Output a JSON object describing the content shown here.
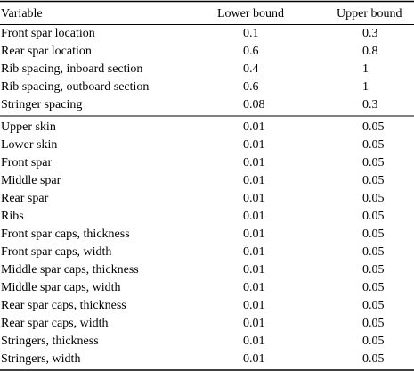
{
  "table": {
    "header": [
      "Variable",
      "Lower bound",
      "Upper bound"
    ],
    "groups": [
      [
        [
          "Front spar location",
          "0.1",
          "0.3"
        ],
        [
          "Rear spar location",
          "0.6",
          "0.8"
        ],
        [
          "Rib spacing, inboard section",
          "0.4",
          "1"
        ],
        [
          "Rib spacing, outboard section",
          "0.6",
          "1"
        ],
        [
          "Stringer spacing",
          "0.08",
          "0.3"
        ]
      ],
      [
        [
          "Upper skin",
          "0.01",
          "0.05"
        ],
        [
          "Lower skin",
          "0.01",
          "0.05"
        ],
        [
          "Front spar",
          "0.01",
          "0.05"
        ],
        [
          "Middle spar",
          "0.01",
          "0.05"
        ],
        [
          "Rear spar",
          "0.01",
          "0.05"
        ],
        [
          "Ribs",
          "0.01",
          "0.05"
        ],
        [
          "Front spar caps, thickness",
          "0.01",
          "0.05"
        ],
        [
          "Front spar caps, width",
          "0.01",
          "0.05"
        ],
        [
          "Middle spar caps, thickness",
          "0.01",
          "0.05"
        ],
        [
          "Middle spar caps, width",
          "0.01",
          "0.05"
        ],
        [
          "Rear spar caps, thickness",
          "0.01",
          "0.05"
        ],
        [
          "Rear spar caps, width",
          "0.01",
          "0.05"
        ],
        [
          "Stringers, thickness",
          "0.01",
          "0.05"
        ],
        [
          "Stringers, width",
          "0.01",
          "0.05"
        ]
      ]
    ]
  }
}
